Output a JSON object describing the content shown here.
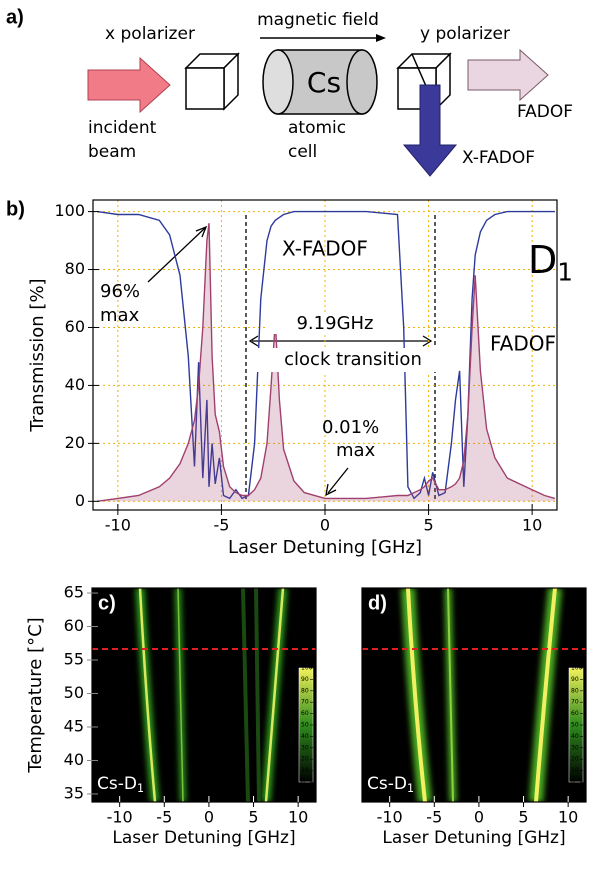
{
  "panel_a": {
    "label": "a)",
    "x_polarizer": "x polarizer",
    "magnetic_field": "magnetic field",
    "cell_text": "Cs",
    "y_polarizer": "y polarizer",
    "incident": [
      "incident",
      "beam"
    ],
    "cell": [
      "atomic",
      "cell"
    ],
    "fadof": "FADOF",
    "x_fadof": "X-FADOF"
  },
  "chart_data": [
    {
      "type": "line",
      "panel": "b)",
      "xlabel": "Laser Detuning [GHz]",
      "ylabel": "Transmission [%]",
      "line_name": "D",
      "line_sub": "1",
      "peak_note": [
        "96%",
        "max"
      ],
      "spacing_note": "9.19GHz",
      "clock_note": "clock transition",
      "leak_note": [
        "0.01%",
        "max"
      ],
      "x": [
        -11,
        -10,
        -9,
        -8,
        -7.5,
        -7,
        -6.6,
        -6.3,
        -6.1,
        -5.9,
        -5.7,
        -5.6,
        -5.45,
        -5.3,
        -5.1,
        -4.9,
        -4.6,
        -4.3,
        -4,
        -3.7,
        -3.4,
        -3.1,
        -2.8,
        -2.6,
        -2.4,
        -2.2,
        -2,
        -1.5,
        -1,
        0,
        2,
        3.5,
        3.8,
        4,
        4.3,
        4.6,
        4.8,
        5,
        5.2,
        5.5,
        5.8,
        6.1,
        6.3,
        6.5,
        6.7,
        6.9,
        7.1,
        7.25,
        7.5,
        7.8,
        8.2,
        8.8,
        10,
        10.6,
        11.1
      ],
      "series": [
        {
          "name": "X-FADOF",
          "color": "#2e3a9c",
          "fill": false,
          "values": [
            100,
            99,
            99,
            97,
            92,
            78,
            50,
            12,
            48,
            8,
            35,
            5,
            20,
            6,
            15,
            2,
            1,
            4,
            1,
            2,
            20,
            70,
            90,
            95,
            97,
            98,
            99,
            100,
            100,
            100,
            100,
            99,
            60,
            5,
            1,
            3,
            8,
            2,
            10,
            2,
            3,
            20,
            35,
            45,
            5,
            30,
            70,
            85,
            93,
            97,
            99,
            100,
            100,
            100,
            100
          ]
        },
        {
          "name": "FADOF",
          "color": "#a0406e",
          "fill": true,
          "values": [
            0,
            1,
            2,
            5,
            8,
            13,
            20,
            28,
            40,
            60,
            90,
            96,
            50,
            30,
            24,
            12,
            5,
            3,
            2,
            2,
            4,
            8,
            20,
            40,
            62,
            35,
            18,
            7,
            3,
            1,
            1,
            2,
            2,
            2,
            3,
            4,
            5,
            7,
            8,
            4,
            4,
            5,
            6,
            8,
            14,
            30,
            60,
            78,
            45,
            25,
            15,
            8,
            4,
            2,
            1
          ]
        }
      ],
      "xlim": [
        -11.2,
        11.2
      ],
      "xticks": [
        -10,
        -5,
        0,
        5,
        10
      ],
      "ylim": [
        -3,
        104
      ],
      "yticks": [
        0,
        20,
        40,
        60,
        80,
        100
      ],
      "grid": true,
      "grid_color": "#f0b400"
    },
    {
      "type": "heatmap",
      "panel": "c)",
      "label": "Cs-D",
      "label_sub": "1",
      "xlabel": "Laser Detuning [GHz]",
      "ylabel": "Temperature [°C]",
      "xlim": [
        -13.1,
        12
      ],
      "xticks": [
        -10,
        -5,
        0,
        5,
        10
      ],
      "ylim": [
        33.8,
        65.75
      ],
      "yticks": [
        35,
        40,
        45,
        50,
        55,
        60,
        65
      ],
      "clim": [
        0,
        100
      ],
      "cticks": [
        0,
        10,
        20,
        30,
        40,
        50,
        60,
        70,
        80,
        90,
        100
      ]
    },
    {
      "type": "heatmap",
      "panel": "d)",
      "label": "Cs-D",
      "label_sub": "1",
      "xlabel": "Laser Detuning [GHz]",
      "xlim": [
        -13.1,
        12
      ],
      "xticks": [
        -10,
        -5,
        0,
        5,
        10
      ],
      "ylim": [
        33.8,
        65.75
      ],
      "clim": [
        0,
        100
      ],
      "cticks": [
        0,
        10,
        20,
        30,
        40,
        50,
        60,
        70,
        80,
        90,
        100
      ]
    }
  ]
}
